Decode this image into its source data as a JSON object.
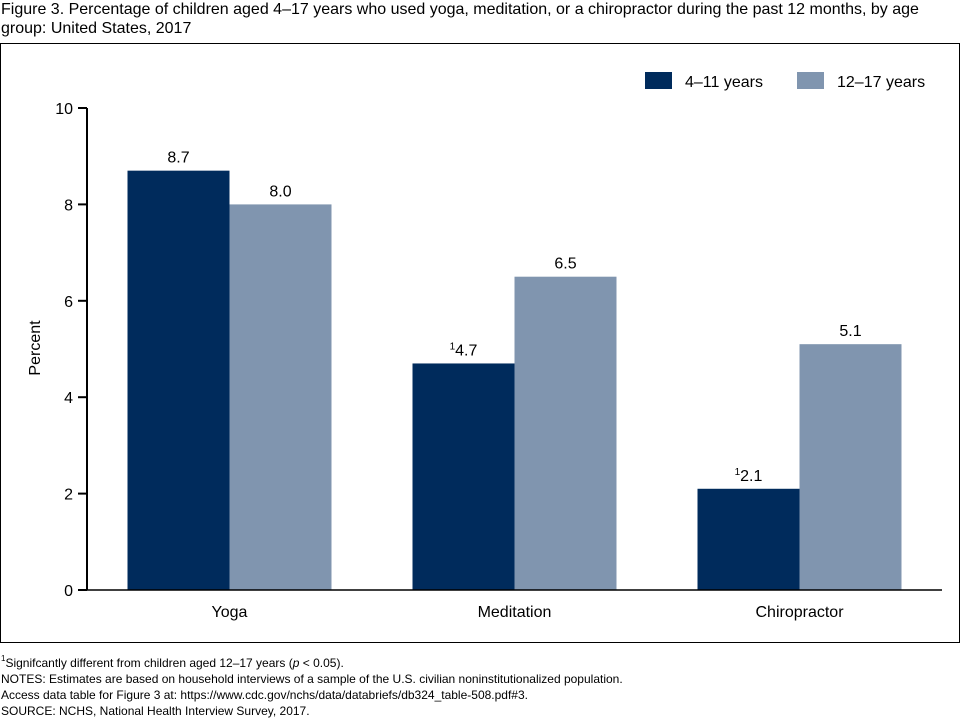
{
  "title": "Figure 3. Percentage of children aged 4–17 years who used yoga, meditation, or a chiropractor during the past 12 months, by age group: United States, 2017",
  "chart_data": {
    "type": "bar",
    "categories": [
      "Yoga",
      "Meditation",
      "Chiropractor"
    ],
    "series": [
      {
        "name": "4–11 years",
        "color": "#002b5c",
        "values": [
          8.7,
          4.7,
          2.1
        ],
        "labels": [
          "8.7",
          "4.7",
          "2.1"
        ],
        "superscripts": [
          "",
          "1",
          "1"
        ]
      },
      {
        "name": "12–17 years",
        "color": "#8095af",
        "values": [
          8.0,
          6.5,
          5.1
        ],
        "labels": [
          "8.0",
          "6.5",
          "5.1"
        ],
        "superscripts": [
          "",
          "",
          ""
        ]
      }
    ],
    "ylabel": "Percent",
    "xlabel": "",
    "ylim": [
      0,
      10
    ],
    "yticks": [
      "0",
      "2",
      "4",
      "6",
      "8",
      "10"
    ],
    "legend_position": "top-right",
    "grid": false
  },
  "notes": {
    "footnote_marker": "1",
    "footnote_text": "Signifcantly different from children aged 12–17 years (",
    "footnote_p": "p",
    "footnote_rest": " < 0.05).",
    "notes_line": "NOTES: Estimates are based on household interviews of a sample of the U.S. civilian noninstitutionalized population.",
    "access_line": "Access data table for Figure 3 at: https://www.cdc.gov/nchs/data/databriefs/db324_table-508.pdf#3.",
    "source_line": "SOURCE: NCHS, National Health Interview Survey, 2017."
  }
}
